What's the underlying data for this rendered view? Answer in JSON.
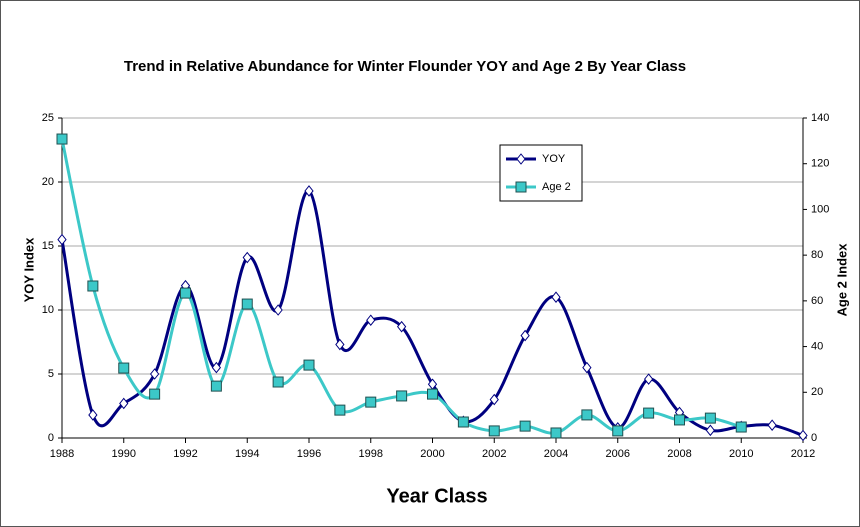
{
  "chart_data": {
    "type": "line",
    "title": "Trend in Relative Abundance for Winter Flounder YOY and Age 2 By Year Class",
    "xlabel": "Year Class",
    "ylabel": "YOY Index",
    "y2label": "Age 2 Index",
    "x": [
      1988,
      1989,
      1990,
      1991,
      1992,
      1993,
      1994,
      1995,
      1996,
      1997,
      1998,
      1999,
      2000,
      2001,
      2002,
      2003,
      2004,
      2005,
      2006,
      2007,
      2008,
      2009,
      2010,
      2011,
      2012
    ],
    "xlim": [
      1988,
      2012
    ],
    "xticks": [
      1988,
      1990,
      1992,
      1994,
      1996,
      1998,
      2000,
      2002,
      2004,
      2006,
      2008,
      2010,
      2012
    ],
    "ylim": [
      0,
      25
    ],
    "yticks": [
      0,
      5,
      10,
      15,
      20,
      25
    ],
    "y2lim": [
      0,
      140
    ],
    "y2ticks": [
      0,
      20,
      40,
      60,
      80,
      100,
      120,
      140
    ],
    "grid": true,
    "smooth": true,
    "legend": "upper center",
    "series": [
      {
        "name": "YOY",
        "color": "#000080",
        "marker": "diamond",
        "values": [
          15.5,
          1.8,
          2.7,
          5.0,
          11.9,
          5.5,
          14.1,
          10.0,
          19.3,
          7.3,
          9.2,
          8.7,
          4.2,
          1.3,
          3.0,
          8.0,
          11.0,
          5.5,
          0.8,
          4.6,
          2.0,
          0.6,
          0.9,
          1.0,
          0.2
        ]
      },
      {
        "name": "Age 2",
        "color": "#3cc8c8",
        "marker": "square",
        "axis": "y2",
        "values": [
          130.8,
          66.5,
          30.6,
          19.2,
          63.4,
          22.7,
          58.6,
          24.5,
          31.9,
          12.2,
          15.7,
          18.4,
          19.2,
          7.0,
          3.1,
          5.2,
          2.2,
          10.1,
          3.1,
          10.9,
          7.9,
          8.7,
          4.8,
          null,
          null
        ]
      }
    ]
  }
}
